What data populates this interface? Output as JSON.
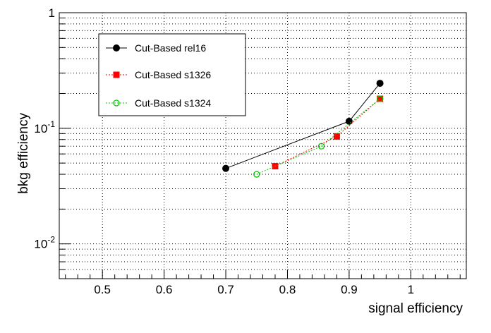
{
  "chart_data": {
    "type": "line",
    "xlabel": "signal efficiency",
    "ylabel": "bkg efficiency",
    "xlim": [
      0.43,
      1.09
    ],
    "ylim": [
      0.005,
      1
    ],
    "y_scale": "log",
    "grid": true,
    "legend_position": "top-left",
    "x_ticks": [
      {
        "value": 0.5,
        "label": "0.5"
      },
      {
        "value": 0.6,
        "label": "0.6"
      },
      {
        "value": 0.7,
        "label": "0.7"
      },
      {
        "value": 0.8,
        "label": "0.8"
      },
      {
        "value": 0.9,
        "label": "0.9"
      },
      {
        "value": 1.0,
        "label": "1"
      }
    ],
    "y_ticks": [
      {
        "value": 1,
        "base": "1",
        "exp": ""
      },
      {
        "value": 0.1,
        "base": "10",
        "exp": "-1"
      },
      {
        "value": 0.01,
        "base": "10",
        "exp": "-2"
      }
    ],
    "series": [
      {
        "name": "Cut-Based rel16",
        "color": "#000000",
        "marker": "filled-circle",
        "line_style": "solid",
        "x": [
          0.7,
          0.9,
          0.95
        ],
        "y": [
          0.045,
          0.115,
          0.245
        ]
      },
      {
        "name": "Cut-Based s1326",
        "color": "#ff0000",
        "marker": "filled-square",
        "line_style": "dotted",
        "x": [
          0.78,
          0.88,
          0.95
        ],
        "y": [
          0.047,
          0.085,
          0.18
        ]
      },
      {
        "name": "Cut-Based s1324",
        "color": "#00cc00",
        "marker": "open-circle",
        "line_style": "dotted",
        "x": [
          0.75,
          0.855,
          0.95
        ],
        "y": [
          0.04,
          0.07,
          0.18
        ]
      }
    ]
  }
}
